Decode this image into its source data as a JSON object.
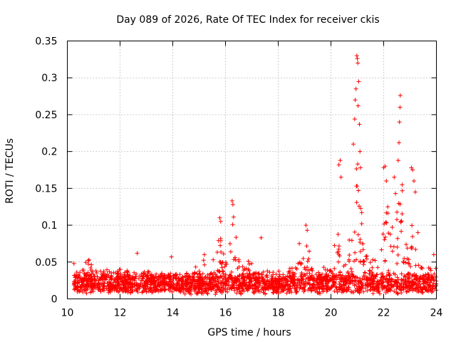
{
  "chart_data": {
    "type": "scatter",
    "title": "Day 089 of 2026, Rate Of TEC Index for receiver ckis",
    "xlabel": "GPS time / hours",
    "ylabel": "ROTI / TECUs",
    "xlim": [
      10,
      24
    ],
    "ylim": [
      0,
      0.35
    ],
    "grid": true,
    "marker": "+",
    "series_color": "#ff0000",
    "x_ticks": [
      "10",
      "12",
      "14",
      "16",
      "18",
      "20",
      "22",
      "24"
    ],
    "x_tick_values": [
      10,
      12,
      14,
      16,
      18,
      20,
      22,
      24
    ],
    "y_ticks": [
      "0",
      "0.05",
      "0.1",
      "0.15",
      "0.2",
      "0.25",
      "0.3",
      "0.35"
    ],
    "y_tick_values": [
      0,
      0.05,
      0.1,
      0.15,
      0.2,
      0.25,
      0.3,
      0.35
    ],
    "envelope_x": [
      10.2,
      10.6,
      10.9,
      11.3,
      11.6,
      12.0,
      12.4,
      12.7,
      13.0,
      13.5,
      14.0,
      14.5,
      15.0,
      15.2,
      15.5,
      15.8,
      16.0,
      16.3,
      16.6,
      17.0,
      17.3,
      17.6,
      18.0,
      18.4,
      18.7,
      19.0,
      19.3,
      19.6,
      20.0,
      20.3,
      20.5,
      20.7,
      20.9,
      21.0,
      21.1,
      21.3,
      21.6,
      21.9,
      22.1,
      22.3,
      22.5,
      22.6,
      22.8,
      23.0,
      23.1,
      23.3,
      23.6,
      23.9,
      24.0
    ],
    "envelope_y": [
      0.045,
      0.047,
      0.05,
      0.045,
      0.043,
      0.04,
      0.038,
      0.036,
      0.034,
      0.032,
      0.033,
      0.035,
      0.04,
      0.055,
      0.05,
      0.09,
      0.06,
      0.11,
      0.05,
      0.045,
      0.04,
      0.036,
      0.033,
      0.035,
      0.045,
      0.08,
      0.05,
      0.04,
      0.05,
      0.09,
      0.06,
      0.08,
      0.15,
      0.3,
      0.14,
      0.07,
      0.06,
      0.1,
      0.16,
      0.1,
      0.12,
      0.2,
      0.12,
      0.08,
      0.15,
      0.06,
      0.05,
      0.045,
      0.04
    ],
    "outliers": [
      {
        "x": 10.25,
        "y": 0.048
      },
      {
        "x": 10.8,
        "y": 0.052
      },
      {
        "x": 12.65,
        "y": 0.062
      },
      {
        "x": 13.95,
        "y": 0.057
      },
      {
        "x": 15.2,
        "y": 0.06
      },
      {
        "x": 15.78,
        "y": 0.11
      },
      {
        "x": 15.82,
        "y": 0.105
      },
      {
        "x": 16.25,
        "y": 0.133
      },
      {
        "x": 16.28,
        "y": 0.128
      },
      {
        "x": 17.35,
        "y": 0.083
      },
      {
        "x": 18.8,
        "y": 0.075
      },
      {
        "x": 19.05,
        "y": 0.1
      },
      {
        "x": 19.1,
        "y": 0.093
      },
      {
        "x": 20.3,
        "y": 0.182
      },
      {
        "x": 20.35,
        "y": 0.188
      },
      {
        "x": 20.38,
        "y": 0.165
      },
      {
        "x": 20.85,
        "y": 0.21
      },
      {
        "x": 20.9,
        "y": 0.244
      },
      {
        "x": 20.92,
        "y": 0.27
      },
      {
        "x": 20.95,
        "y": 0.285
      },
      {
        "x": 20.98,
        "y": 0.33
      },
      {
        "x": 21.0,
        "y": 0.326
      },
      {
        "x": 21.02,
        "y": 0.32
      },
      {
        "x": 21.05,
        "y": 0.295
      },
      {
        "x": 21.03,
        "y": 0.262
      },
      {
        "x": 21.08,
        "y": 0.237
      },
      {
        "x": 21.1,
        "y": 0.2
      },
      {
        "x": 21.12,
        "y": 0.178
      },
      {
        "x": 22.0,
        "y": 0.178
      },
      {
        "x": 22.05,
        "y": 0.18
      },
      {
        "x": 22.1,
        "y": 0.16
      },
      {
        "x": 22.4,
        "y": 0.165
      },
      {
        "x": 22.45,
        "y": 0.143
      },
      {
        "x": 22.55,
        "y": 0.188
      },
      {
        "x": 22.58,
        "y": 0.212
      },
      {
        "x": 22.6,
        "y": 0.24
      },
      {
        "x": 22.62,
        "y": 0.26
      },
      {
        "x": 22.63,
        "y": 0.276
      },
      {
        "x": 22.7,
        "y": 0.155
      },
      {
        "x": 23.05,
        "y": 0.178
      },
      {
        "x": 23.1,
        "y": 0.175
      },
      {
        "x": 23.15,
        "y": 0.16
      },
      {
        "x": 23.2,
        "y": 0.145
      },
      {
        "x": 23.3,
        "y": 0.09
      },
      {
        "x": 23.9,
        "y": 0.06
      }
    ],
    "n_background_points": 2400
  }
}
